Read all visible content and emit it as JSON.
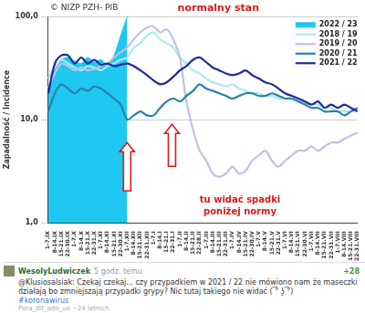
{
  "chart_data": {
    "type": "line",
    "y_label": "Zapadalność / Incidence",
    "annotations": [
      "© NIZP PZH- PIB",
      "normalny stan",
      "tu widać spadki",
      "poniżej normy"
    ],
    "categories": [
      "1-7.IX",
      "8-14.IX",
      "15-21.IX",
      "22-30.IX",
      "1-7.X",
      "8-14.X",
      "15-21.X",
      "22-31.X",
      "1-7.XI",
      "8-14.XI",
      "15-21.XI",
      "22-30.XI",
      "1-7.XII",
      "8-14.XII",
      "15-21.XII",
      "22-31.XII",
      "1-7.I",
      "8-14.I",
      "15-21.I",
      "22-31.I",
      "1-7.II",
      "8-14.II",
      "15-21.II",
      "22-28.II",
      "1-7.III",
      "8-14.III",
      "15-21.III",
      "22-31.III",
      "1-7.IV",
      "8-14.IV",
      "15-21.IV",
      "22-30.IV",
      "1-7.V",
      "8-14.V",
      "15-21.V",
      "22-31.V",
      "1-7.VI",
      "8-14.VI",
      "15-21.VI",
      "22-30.VI",
      "1-7.VII",
      "8-14.VII",
      "15-21.VII",
      "22-31.VII",
      "1-7.VIII",
      "8-14.VIII",
      "15-21.VIII",
      "22-31.VIII"
    ],
    "series": [
      {
        "name": "2022 / 23",
        "type": "area",
        "color": "#1ec8f0",
        "values": [
          18,
          32,
          38,
          40,
          37,
          35,
          40,
          36,
          38,
          34,
          42,
          65,
          100,
          null,
          null,
          null,
          null,
          null,
          null,
          null,
          null,
          null,
          null,
          null,
          null,
          null,
          null,
          null,
          null,
          null,
          null,
          null,
          null,
          null,
          null,
          null,
          null,
          null,
          null,
          null,
          null,
          null,
          null,
          null,
          null,
          null,
          null,
          null
        ]
      },
      {
        "name": "2018 / 19",
        "type": "line",
        "color": "#a8ece8",
        "values": [
          25,
          32,
          38,
          35,
          32,
          30,
          33,
          32,
          30,
          33,
          35,
          38,
          40,
          50,
          55,
          65,
          70,
          60,
          55,
          50,
          40,
          35,
          30,
          28,
          25,
          23,
          22,
          21,
          22,
          20,
          19,
          18,
          18,
          17,
          17,
          16,
          16,
          16,
          15,
          15,
          14,
          14,
          13,
          13,
          12,
          12,
          12,
          12
        ]
      },
      {
        "name": "2019 / 20",
        "type": "line",
        "color": "#c5bfe6",
        "values": [
          20,
          28,
          35,
          33,
          30,
          32,
          30,
          31,
          33,
          35,
          40,
          45,
          50,
          60,
          70,
          78,
          80,
          70,
          75,
          60,
          40,
          15,
          8,
          5,
          4,
          3,
          2.8,
          3,
          3.5,
          3,
          3.2,
          4,
          4.5,
          5,
          4,
          3.5,
          4,
          4.5,
          5,
          5,
          5.5,
          5,
          5.5,
          6,
          6,
          6.5,
          7,
          7.5
        ]
      },
      {
        "name": "2020 / 21",
        "type": "line",
        "color": "#2a7fb0",
        "values": [
          12,
          18,
          22,
          20,
          18,
          20,
          19,
          21,
          20,
          18,
          16,
          14,
          10,
          11,
          12,
          11,
          11,
          13,
          15,
          16,
          15,
          17,
          19,
          22,
          20,
          19,
          18,
          17,
          16,
          17,
          18,
          18,
          17,
          17,
          18,
          17,
          16,
          16,
          15,
          14,
          13,
          13,
          12,
          12,
          12,
          11,
          12,
          13
        ]
      },
      {
        "name": "2021 / 22",
        "type": "line",
        "color": "#1f2a9a",
        "values": [
          18,
          35,
          42,
          42,
          35,
          40,
          35,
          38,
          34,
          35,
          33,
          34,
          35,
          33,
          30,
          27,
          24,
          22,
          23,
          26,
          30,
          33,
          38,
          40,
          36,
          32,
          30,
          28,
          27,
          28,
          30,
          27,
          25,
          23,
          22,
          20,
          18,
          17,
          16,
          15,
          14,
          15,
          13,
          14,
          13,
          14,
          13,
          12
        ]
      }
    ],
    "log": "y",
    "ylim": [
      1,
      100
    ],
    "yticks": [
      {
        "value": 1,
        "label": "1,0"
      },
      {
        "value": 10,
        "label": "10,0"
      },
      {
        "value": 100,
        "label": "100,0"
      }
    ],
    "grid": true,
    "legend": "upper right"
  },
  "comment": {
    "user": "WesolyLudwiczek",
    "time": "5 godz. temu",
    "score": "+28",
    "text": "@Klusiosalsiak: Czekaj czekaj... czy przypadkiem w 2021 / 22 nie mówiono nam że maseczki działają bo zmniejszają przypadki grypy? Nic tutaj takiego nie widać ( ͡° ʖ̯ ͡°)",
    "tag": "#koronawirus",
    "footer": "Pora_dit_ado_ue ~24 letnich"
  }
}
